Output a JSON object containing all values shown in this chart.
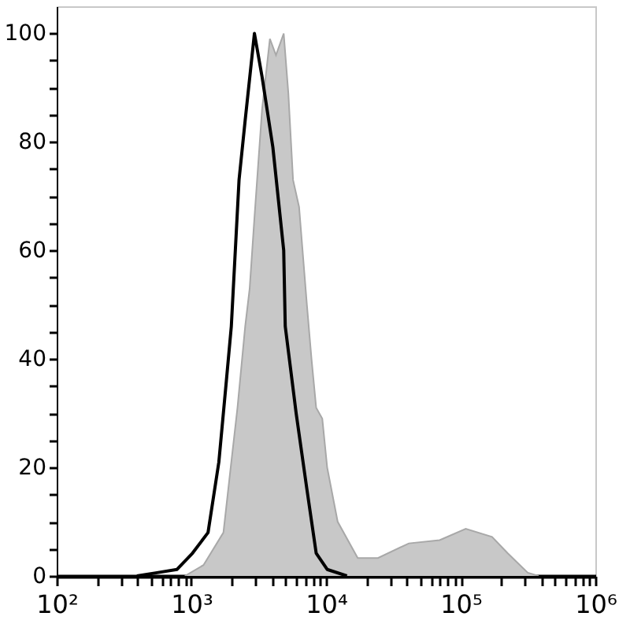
{
  "chart_data": {
    "type": "area",
    "xlim": [
      100,
      1000000
    ],
    "ylim": [
      0,
      105
    ],
    "log": "x",
    "grid": false,
    "xticks": [
      {
        "value": 100,
        "label": "10²"
      },
      {
        "value": 200,
        "label": null
      },
      {
        "value": 300,
        "label": null
      },
      {
        "value": 400,
        "label": null
      },
      {
        "value": 500,
        "label": null
      },
      {
        "value": 600,
        "label": null
      },
      {
        "value": 700,
        "label": null
      },
      {
        "value": 800,
        "label": null
      },
      {
        "value": 900,
        "label": null
      },
      {
        "value": 1000,
        "label": "10³"
      },
      {
        "value": 2000,
        "label": null
      },
      {
        "value": 3000,
        "label": null
      },
      {
        "value": 4000,
        "label": null
      },
      {
        "value": 5000,
        "label": null
      },
      {
        "value": 6000,
        "label": null
      },
      {
        "value": 7000,
        "label": null
      },
      {
        "value": 8000,
        "label": null
      },
      {
        "value": 9000,
        "label": null
      },
      {
        "value": 10000,
        "label": "10⁴"
      },
      {
        "value": 20000,
        "label": null
      },
      {
        "value": 30000,
        "label": null
      },
      {
        "value": 40000,
        "label": null
      },
      {
        "value": 50000,
        "label": null
      },
      {
        "value": 60000,
        "label": null
      },
      {
        "value": 70000,
        "label": null
      },
      {
        "value": 80000,
        "label": null
      },
      {
        "value": 90000,
        "label": null
      },
      {
        "value": 100000,
        "label": "10⁵"
      },
      {
        "value": 200000,
        "label": null
      },
      {
        "value": 300000,
        "label": null
      },
      {
        "value": 400000,
        "label": null
      },
      {
        "value": 500000,
        "label": null
      },
      {
        "value": 600000,
        "label": null
      },
      {
        "value": 700000,
        "label": null
      },
      {
        "value": 800000,
        "label": null
      },
      {
        "value": 900000,
        "label": null
      },
      {
        "value": 1000000,
        "label": "10⁶"
      }
    ],
    "yticks": [
      0,
      {
        "value": 5,
        "label": null
      },
      {
        "value": 10,
        "label": null
      },
      {
        "value": 15,
        "label": null
      },
      20,
      {
        "value": 25,
        "label": null
      },
      {
        "value": 30,
        "label": null
      },
      {
        "value": 35,
        "label": null
      },
      40,
      {
        "value": 45,
        "label": null
      },
      {
        "value": 50,
        "label": null
      },
      {
        "value": 55,
        "label": null
      },
      60,
      {
        "value": 65,
        "label": null
      },
      {
        "value": 70,
        "label": null
      },
      {
        "value": 75,
        "label": null
      },
      80,
      {
        "value": 85,
        "label": null
      },
      {
        "value": 90,
        "label": null
      },
      {
        "value": 95,
        "label": null
      },
      100
    ],
    "series": [
      {
        "color": "#c8c8c8",
        "x": [
          895,
          1230,
          1730,
          1980,
          2200,
          2510,
          2710,
          2940,
          3350,
          3830,
          4250,
          4850,
          5250,
          5690,
          6310,
          7210,
          7800,
          8450,
          9380,
          10200,
          12200,
          17200,
          24300,
          41200,
          69800,
          109000,
          171000,
          223000,
          315000,
          379000
        ],
        "values": [
          0,
          2,
          8,
          21,
          31,
          46,
          53,
          66,
          86,
          99,
          96,
          100,
          89,
          73,
          68,
          50,
          40,
          31,
          29,
          20,
          10,
          3.3,
          3.3,
          6,
          6.6,
          8.7,
          7.2,
          4.2,
          0.6,
          0
        ]
      },
      {
        "type": "line",
        "color": "#000000",
        "x": [
          394,
          556,
          783,
          1020,
          1330,
          1600,
          1820,
          1980,
          2260,
          2510,
          2940,
          3350,
          4030,
          4850,
          4980,
          6000,
          7210,
          8450,
          10200,
          14300
        ],
        "values": [
          0,
          0.6,
          1.2,
          4.2,
          8,
          21,
          36,
          46,
          73,
          84,
          100,
          92,
          79,
          60,
          46,
          30,
          16,
          4.2,
          1.2,
          0
        ]
      }
    ]
  }
}
